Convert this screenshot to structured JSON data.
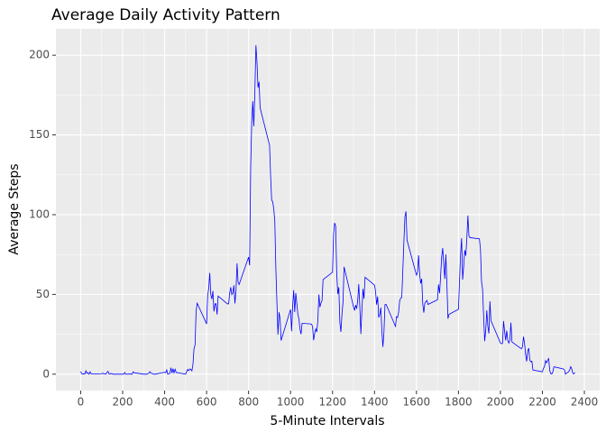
{
  "chart_data": {
    "type": "line",
    "title": "Average Daily Activity Pattern",
    "x_label": "5-Minute Intervals",
    "y_label": "Average Steps",
    "x": [
      0,
      5,
      10,
      15,
      20,
      25,
      30,
      35,
      40,
      45,
      50,
      55,
      100,
      105,
      110,
      115,
      120,
      125,
      130,
      135,
      140,
      145,
      150,
      155,
      200,
      205,
      210,
      215,
      220,
      225,
      230,
      235,
      240,
      245,
      250,
      255,
      300,
      305,
      310,
      315,
      320,
      325,
      330,
      335,
      340,
      345,
      350,
      355,
      400,
      405,
      410,
      415,
      420,
      425,
      430,
      435,
      440,
      445,
      450,
      455,
      500,
      505,
      510,
      515,
      520,
      525,
      530,
      535,
      540,
      545,
      550,
      555,
      600,
      605,
      610,
      615,
      620,
      625,
      630,
      635,
      640,
      645,
      650,
      655,
      700,
      705,
      710,
      715,
      720,
      725,
      730,
      735,
      740,
      745,
      750,
      755,
      800,
      805,
      810,
      815,
      820,
      825,
      830,
      835,
      840,
      845,
      850,
      855,
      900,
      905,
      910,
      915,
      920,
      925,
      930,
      935,
      940,
      945,
      950,
      955,
      1000,
      1005,
      1010,
      1015,
      1020,
      1025,
      1030,
      1035,
      1040,
      1045,
      1050,
      1055,
      1100,
      1105,
      1110,
      1115,
      1120,
      1125,
      1130,
      1135,
      1140,
      1145,
      1150,
      1155,
      1200,
      1205,
      1210,
      1215,
      1220,
      1225,
      1230,
      1235,
      1240,
      1245,
      1250,
      1255,
      1300,
      1305,
      1310,
      1315,
      1320,
      1325,
      1330,
      1335,
      1340,
      1345,
      1350,
      1355,
      1400,
      1405,
      1410,
      1415,
      1420,
      1425,
      1430,
      1435,
      1440,
      1445,
      1450,
      1455,
      1500,
      1505,
      1510,
      1515,
      1520,
      1525,
      1530,
      1535,
      1540,
      1545,
      1550,
      1555,
      1600,
      1605,
      1610,
      1615,
      1620,
      1625,
      1630,
      1635,
      1640,
      1645,
      1650,
      1655,
      1700,
      1705,
      1710,
      1715,
      1720,
      1725,
      1730,
      1735,
      1740,
      1745,
      1750,
      1755,
      1800,
      1805,
      1810,
      1815,
      1820,
      1825,
      1830,
      1835,
      1840,
      1845,
      1850,
      1855,
      1900,
      1905,
      1910,
      1915,
      1920,
      1925,
      1930,
      1935,
      1940,
      1945,
      1950,
      1955,
      2000,
      2005,
      2010,
      2015,
      2020,
      2025,
      2030,
      2035,
      2040,
      2045,
      2050,
      2055,
      2100,
      2105,
      2110,
      2115,
      2120,
      2125,
      2130,
      2135,
      2140,
      2145,
      2150,
      2155,
      2200,
      2205,
      2210,
      2215,
      2220,
      2225,
      2230,
      2235,
      2240,
      2245,
      2250,
      2255,
      2300,
      2305,
      2310,
      2315,
      2320,
      2325,
      2330,
      2335,
      2340,
      2345,
      2350,
      2355
    ],
    "series": [
      {
        "color": "#0000ff",
        "values": [
          1.7,
          0.3,
          0.1,
          0.2,
          0.1,
          2.1,
          0.5,
          0.9,
          0,
          1.5,
          0.3,
          0.1,
          0.3,
          0.7,
          0.2,
          0.3,
          0,
          1.1,
          1.8,
          0.2,
          0.2,
          0.4,
          0.3,
          0,
          0,
          0,
          1.1,
          0,
          0,
          0.1,
          0,
          0.2,
          0,
          0,
          1.5,
          0.9,
          0,
          0,
          0,
          0,
          0.2,
          0.6,
          1.6,
          0.6,
          0.5,
          0.1,
          0,
          0,
          1.2,
          0.9,
          2.6,
          0,
          0.3,
          0.4,
          4.1,
          0.7,
          3.5,
          0.8,
          3.1,
          1.1,
          0,
          1.6,
          3,
          2.2,
          3.3,
          3,
          2.1,
          6.1,
          16,
          18.3,
          39.5,
          44.5,
          31.5,
          49.3,
          53.8,
          63.5,
          50,
          47.1,
          52.2,
          39.3,
          44,
          44.2,
          37.4,
          49,
          44,
          44.2,
          50.8,
          54.5,
          49.9,
          50.9,
          55.7,
          44.3,
          52.3,
          69.5,
          57.8,
          56.2,
          73.4,
          68.2,
          129.4,
          157.5,
          171.2,
          155.4,
          177.3,
          206.2,
          195.9,
          179.6,
          183.4,
          167,
          143.5,
          124,
          109.1,
          108.1,
          103.7,
          96,
          66.2,
          45.2,
          24.8,
          38.8,
          35,
          21.1,
          40.6,
          26.9,
          42.4,
          52.7,
          38.9,
          50.8,
          44.3,
          37.4,
          34.7,
          28.3,
          25.1,
          31.9,
          31.4,
          29.7,
          21.3,
          25.5,
          28.4,
          26.5,
          33.4,
          50,
          42,
          44.6,
          46,
          59.3,
          63.9,
          87.7,
          94.8,
          92.8,
          63.4,
          50.2,
          54.5,
          32.4,
          26.5,
          37.7,
          45.1,
          67.3,
          42.3,
          39.9,
          43.3,
          41,
          46.2,
          56.4,
          42.8,
          25.1,
          40,
          53.5,
          47.3,
          60.8,
          55.8,
          52,
          43.6,
          48.7,
          35.5,
          37.5,
          41.8,
          27.5,
          17.1,
          26.1,
          43.6,
          43.8,
          30,
          36.1,
          35.5,
          38.8,
          46,
          47.8,
          48.1,
          65.3,
          82.9,
          98.7,
          102.1,
          84,
          62.1,
          64.1,
          74.5,
          63.2,
          56.9,
          59.8,
          43.9,
          38.6,
          44.7,
          45.5,
          46.2,
          43.7,
          46.6,
          56.3,
          50.7,
          61.2,
          73.4,
          79.1,
          68.9,
          59.7,
          75.1,
          56.5,
          34.8,
          37.5,
          40.7,
          58,
          74.7,
          85.3,
          59.3,
          67.8,
          77.7,
          74.2,
          85.3,
          99.5,
          86.6,
          85.6,
          84.9,
          77.8,
          58,
          53.4,
          36.3,
          20.7,
          27.4,
          40,
          30.2,
          25.5,
          45.7,
          33.5,
          19.6,
          19,
          19.3,
          33.3,
          26.8,
          21.2,
          27.3,
          21.3,
          19.5,
          21.3,
          32.3,
          20.2,
          15.9,
          17.2,
          23.5,
          19.2,
          12.5,
          8,
          14.7,
          16.3,
          8.7,
          7.8,
          8.1,
          2.6,
          1.5,
          3.7,
          4.8,
          8.5,
          7.1,
          8.7,
          9.8,
          2.2,
          0.3,
          0.1,
          1.6,
          4.6,
          3.3,
          2.8,
          0,
          0.8,
          1,
          1.6,
          2.6,
          4.7,
          3.3,
          0.6,
          0.2,
          1.1
        ]
      }
    ],
    "xlim": [
      -118,
      2473
    ],
    "ylim": [
      -10.3,
      216.5
    ],
    "xticks": [
      0,
      200,
      400,
      600,
      800,
      1000,
      1200,
      1400,
      1600,
      1800,
      2000,
      2200,
      2400
    ],
    "yticks": [
      0,
      50,
      100,
      150,
      200
    ],
    "x_minor_grid": [
      100,
      300,
      500,
      700,
      900,
      1100,
      1300,
      1500,
      1700,
      1900,
      2100,
      2300
    ],
    "y_minor_grid": [
      25,
      75,
      125,
      175
    ],
    "grid": true
  }
}
